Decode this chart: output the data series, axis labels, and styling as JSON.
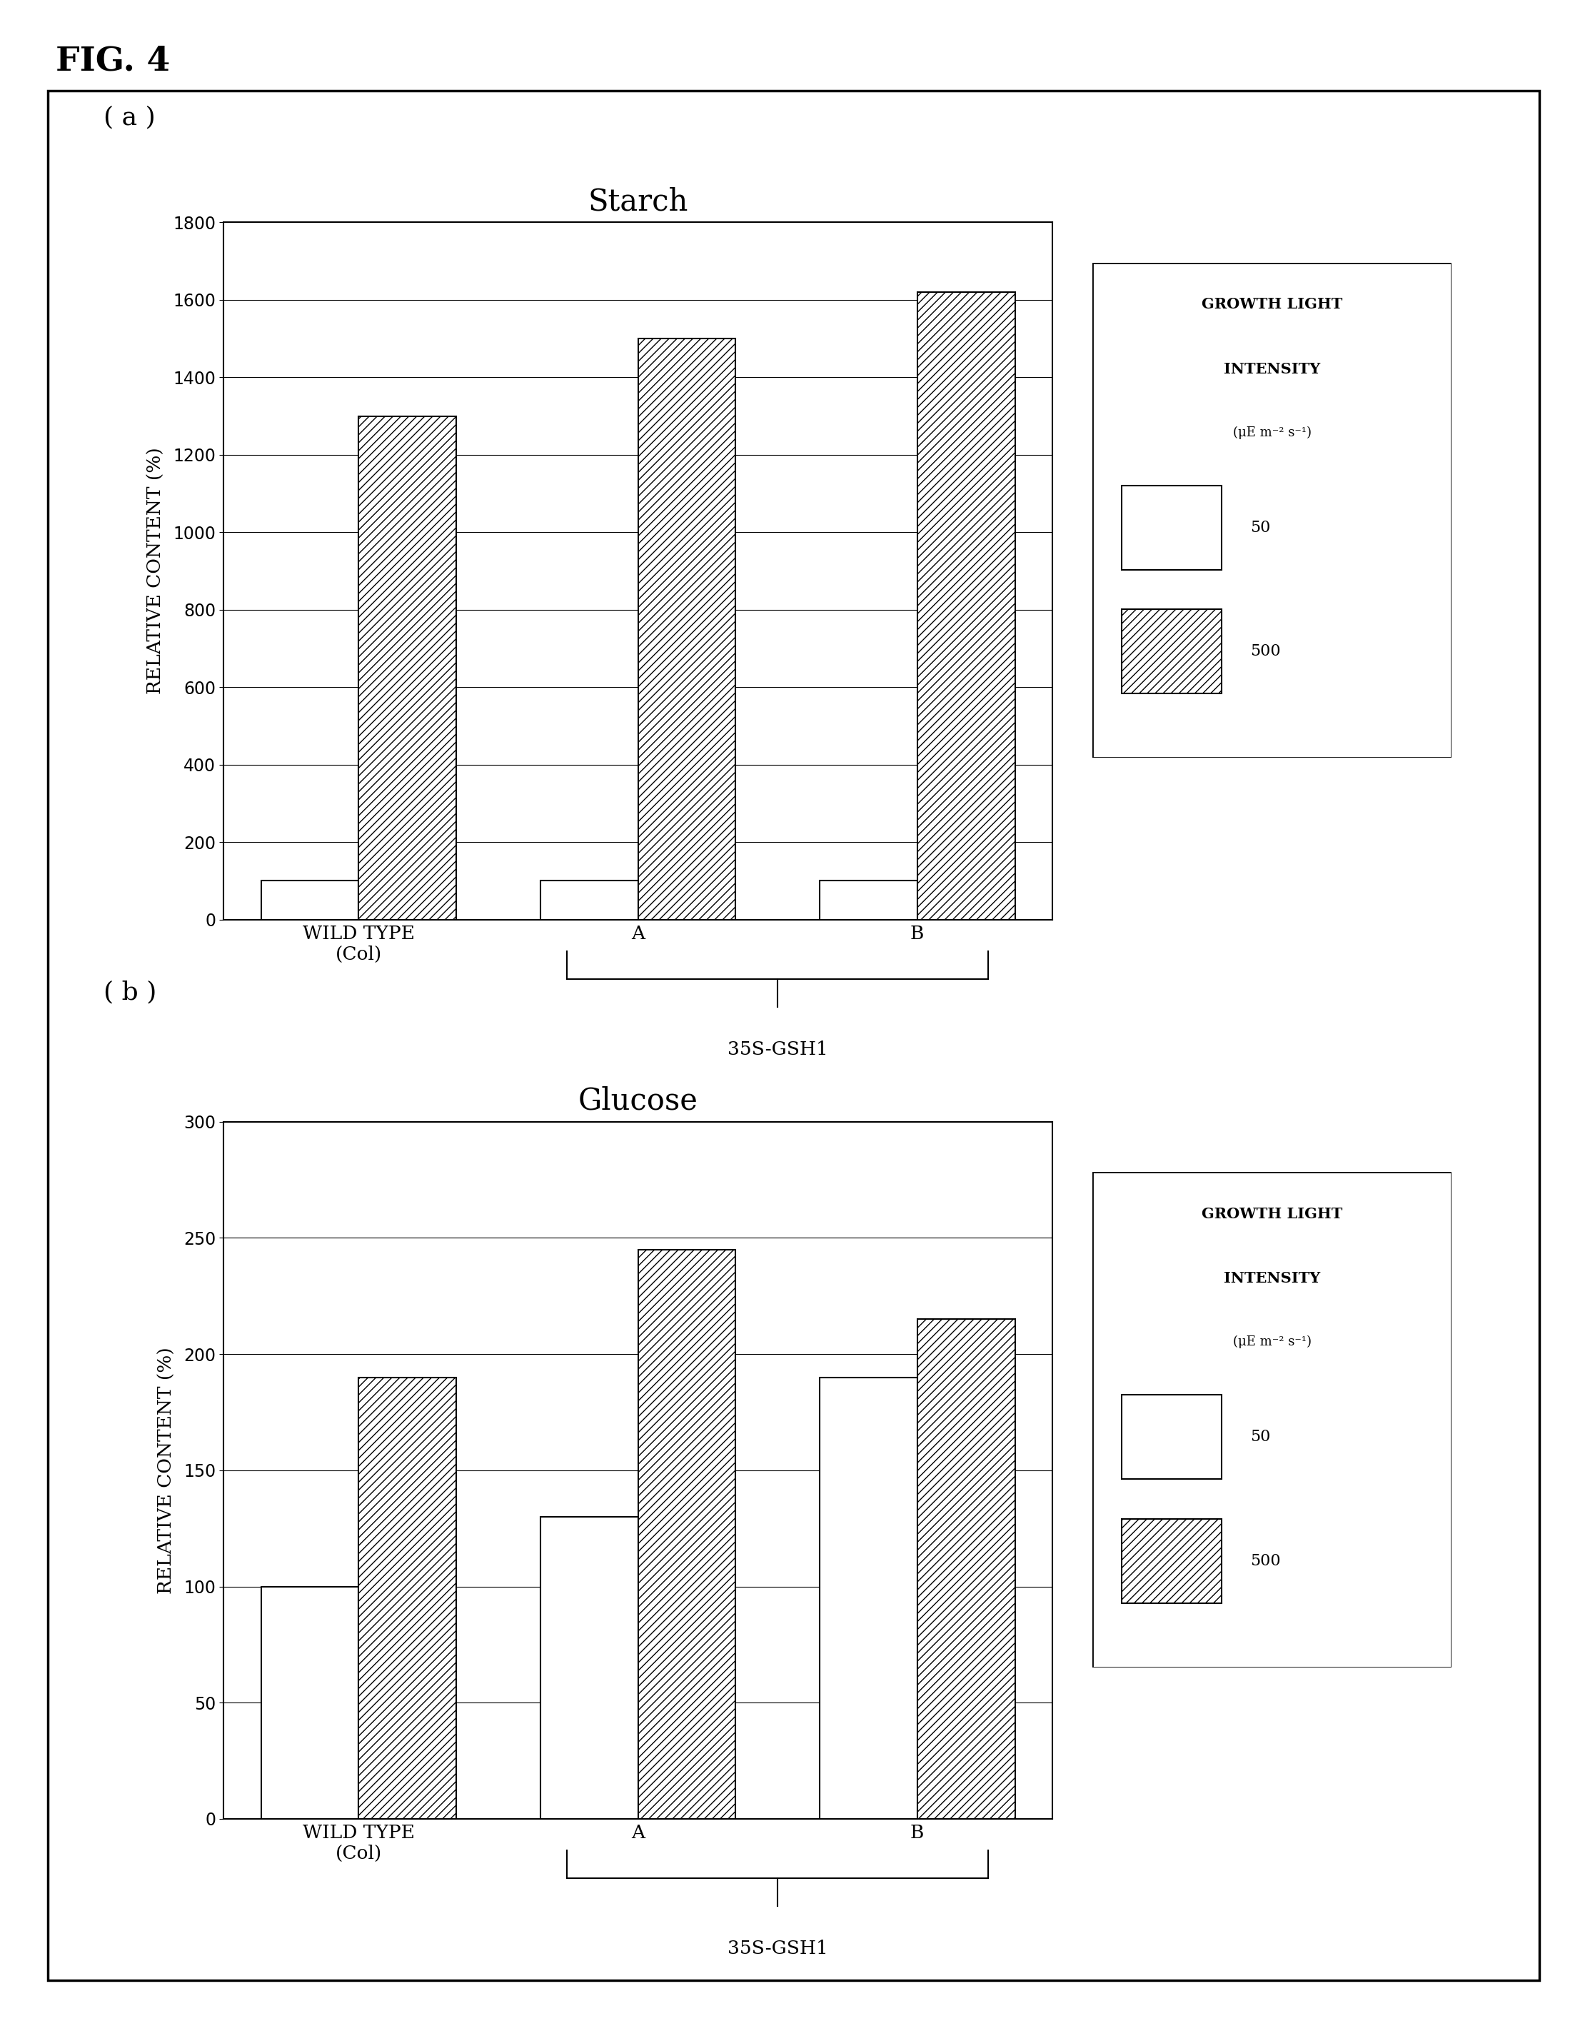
{
  "fig_label": "FIG. 4",
  "panel_a": {
    "title": "Starch",
    "ylabel": "RELATIVE CONTENT (%)",
    "ylim": [
      0,
      1800
    ],
    "yticks": [
      0,
      200,
      400,
      600,
      800,
      1000,
      1200,
      1400,
      1600,
      1800
    ],
    "groups": [
      "WILD TYPE\n(Col)",
      "A",
      "B"
    ],
    "values_50": [
      100,
      100,
      100
    ],
    "values_500": [
      1300,
      1500,
      1620
    ]
  },
  "panel_b": {
    "title": "Glucose",
    "ylabel": "RELATIVE CONTENT (%)",
    "ylim": [
      0,
      300
    ],
    "yticks": [
      0,
      50,
      100,
      150,
      200,
      250,
      300
    ],
    "groups": [
      "WILD TYPE\n(Col)",
      "A",
      "B"
    ],
    "values_50": [
      100,
      130,
      190
    ],
    "values_500": [
      190,
      245,
      215
    ]
  },
  "legend_line1": "GROWTH LIGHT",
  "legend_line2": "INTENSITY",
  "legend_line3": "(μE m⁻² s⁻¹)",
  "legend_50_label": "50",
  "legend_500_label": "500",
  "brace_label": "35S-GSH1",
  "bar_width": 0.35,
  "hatch_pattern": "///",
  "panel_a_label": "( a )",
  "panel_b_label": "( b )"
}
